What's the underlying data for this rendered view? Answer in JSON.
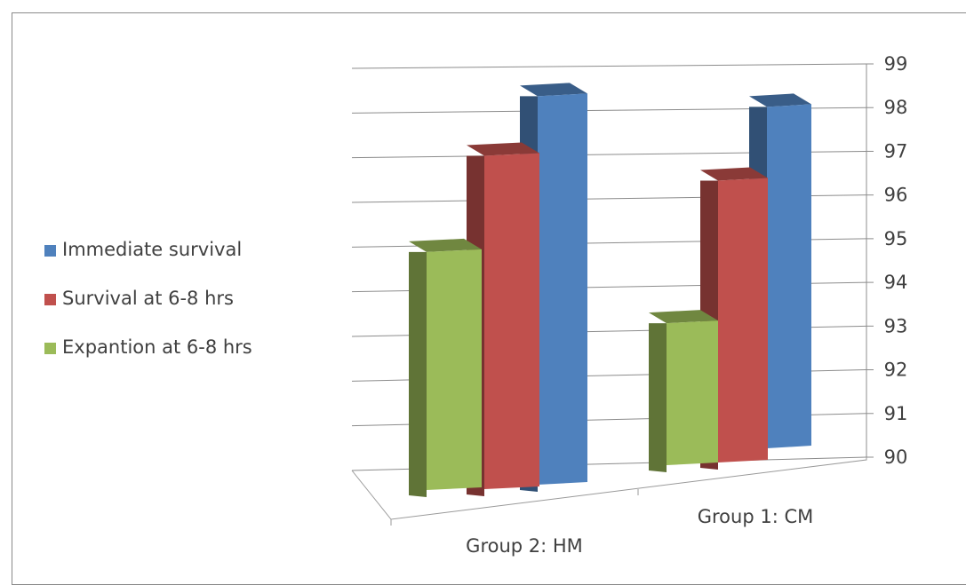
{
  "chart_data": {
    "type": "bar",
    "title": "",
    "xlabel": "",
    "ylabel": "",
    "ylim": [
      90,
      99
    ],
    "y_ticks": [
      "90",
      "91",
      "92",
      "93",
      "94",
      "95",
      "96",
      "97",
      "98",
      "99"
    ],
    "grid": true,
    "legend_position": "left",
    "three_d": true,
    "categories": [
      "Group 2: HM",
      "Group 1: CM"
    ],
    "series": [
      {
        "name": "Immediate survival",
        "values": [
          98.6,
          98.3
        ],
        "color": "#4f81bd"
      },
      {
        "name": "Survival at 6-8 hrs",
        "values": [
          97.3,
          96.6
        ],
        "color": "#c0504d"
      },
      {
        "name": "Expantion at 6-8 hrs",
        "values": [
          95.2,
          93.3
        ],
        "color": "#9bbb59"
      }
    ]
  }
}
